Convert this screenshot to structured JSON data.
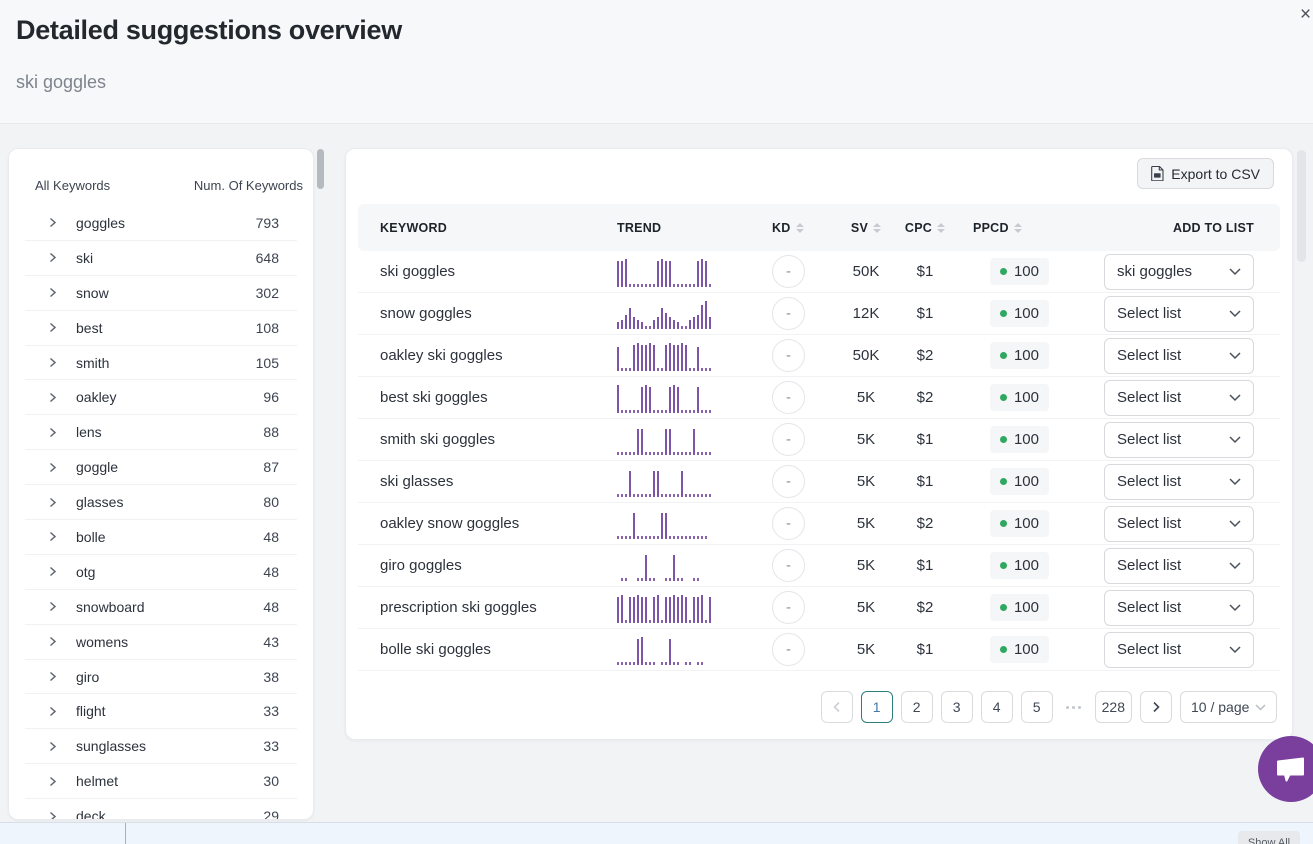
{
  "header": {
    "title": "Detailed suggestions overview",
    "subtitle": "ski goggles",
    "close": "×"
  },
  "sidebar": {
    "columns": {
      "left": "All Keywords",
      "right": "Num. Of Keywords"
    },
    "items": [
      {
        "label": "goggles",
        "count": "793"
      },
      {
        "label": "ski",
        "count": "648"
      },
      {
        "label": "snow",
        "count": "302"
      },
      {
        "label": "best",
        "count": "108"
      },
      {
        "label": "smith",
        "count": "105"
      },
      {
        "label": "oakley",
        "count": "96"
      },
      {
        "label": "lens",
        "count": "88"
      },
      {
        "label": "goggle",
        "count": "87"
      },
      {
        "label": "glasses",
        "count": "80"
      },
      {
        "label": "bolle",
        "count": "48"
      },
      {
        "label": "otg",
        "count": "48"
      },
      {
        "label": "snowboard",
        "count": "48"
      },
      {
        "label": "womens",
        "count": "43"
      },
      {
        "label": "giro",
        "count": "38"
      },
      {
        "label": "flight",
        "count": "33"
      },
      {
        "label": "sunglasses",
        "count": "33"
      },
      {
        "label": "helmet",
        "count": "30"
      },
      {
        "label": "deck",
        "count": "29"
      }
    ]
  },
  "table": {
    "export_button": "Export to CSV",
    "headers": {
      "keyword": "KEYWORD",
      "trend": "TREND",
      "kd": "KD",
      "sv": "SV",
      "cpc": "CPC",
      "ppcd": "PPCD",
      "add": "ADD TO LIST"
    },
    "rows": [
      {
        "keyword": "ski goggles",
        "kd": "-",
        "sv": "50K",
        "cpc": "$1",
        "ppcd": "100",
        "list": "ski goggles",
        "trend": [
          9,
          9,
          10,
          0,
          0,
          0,
          0,
          0,
          0,
          0,
          9,
          10,
          9,
          9,
          0,
          0,
          0,
          0,
          0,
          0,
          9,
          10,
          9,
          0
        ]
      },
      {
        "keyword": "snow goggles",
        "kd": "-",
        "sv": "12K",
        "cpc": "$1",
        "ppcd": "100",
        "list": "Select list",
        "trend": [
          1,
          2,
          4,
          7,
          3,
          2,
          1,
          0,
          0,
          2,
          3,
          7,
          5,
          3,
          2,
          1,
          0,
          0,
          2,
          3,
          4,
          8,
          10,
          3
        ]
      },
      {
        "keyword": "oakley ski goggles",
        "kd": "-",
        "sv": "50K",
        "cpc": "$2",
        "ppcd": "100",
        "list": "Select list",
        "trend": [
          8,
          0,
          0,
          0,
          9,
          10,
          9,
          9,
          10,
          9,
          0,
          0,
          9,
          10,
          9,
          9,
          10,
          9,
          0,
          0,
          8,
          0,
          0,
          0
        ]
      },
      {
        "keyword": "best ski goggles",
        "kd": "-",
        "sv": "5K",
        "cpc": "$2",
        "ppcd": "100",
        "list": "Select list",
        "trend": [
          10,
          0,
          0,
          0,
          0,
          0,
          9,
          10,
          9,
          0,
          0,
          0,
          0,
          9,
          10,
          9,
          0,
          0,
          0,
          0,
          9,
          0,
          0,
          0
        ]
      },
      {
        "keyword": "smith ski goggles",
        "kd": "-",
        "sv": "5K",
        "cpc": "$1",
        "ppcd": "100",
        "list": "Select list",
        "trend": [
          0,
          0,
          0,
          0,
          0,
          9,
          9,
          0,
          0,
          0,
          0,
          0,
          9,
          9,
          0,
          0,
          0,
          0,
          0,
          9,
          0,
          0,
          0,
          0
        ]
      },
      {
        "keyword": "ski glasses",
        "kd": "-",
        "sv": "5K",
        "cpc": "$1",
        "ppcd": "100",
        "list": "Select list",
        "trend": [
          0,
          0,
          0,
          9,
          0,
          0,
          0,
          0,
          0,
          9,
          9,
          0,
          0,
          0,
          0,
          0,
          9,
          0,
          0,
          0,
          0,
          0,
          0,
          0
        ]
      },
      {
        "keyword": "oakley snow goggles",
        "kd": "-",
        "sv": "5K",
        "cpc": "$2",
        "ppcd": "100",
        "list": "Select list",
        "trend": [
          0,
          0,
          0,
          0,
          9,
          0,
          0,
          0,
          0,
          0,
          0,
          9,
          9,
          0,
          0,
          0,
          0,
          0,
          0,
          0,
          0,
          0,
          0,
          -1
        ]
      },
      {
        "keyword": "giro goggles",
        "kd": "-",
        "sv": "5K",
        "cpc": "$1",
        "ppcd": "100",
        "list": "Select list",
        "trend": [
          -1,
          0,
          0,
          -1,
          -1,
          0,
          0,
          9,
          0,
          0,
          -1,
          -1,
          0,
          0,
          9,
          0,
          0,
          -1,
          -1,
          0,
          0,
          -1,
          -1,
          -1
        ]
      },
      {
        "keyword": "prescription ski goggles",
        "kd": "-",
        "sv": "5K",
        "cpc": "$2",
        "ppcd": "100",
        "list": "Select list",
        "trend": [
          9,
          10,
          0,
          9,
          9,
          10,
          9,
          9,
          0,
          9,
          10,
          0,
          9,
          9,
          10,
          9,
          10,
          9,
          0,
          9,
          9,
          10,
          0,
          9
        ]
      },
      {
        "keyword": "bolle ski goggles",
        "kd": "-",
        "sv": "5K",
        "cpc": "$1",
        "ppcd": "100",
        "list": "Select list",
        "trend": [
          0,
          0,
          0,
          0,
          0,
          9,
          10,
          0,
          0,
          0,
          -1,
          0,
          0,
          9,
          0,
          0,
          -1,
          0,
          0,
          -1,
          0,
          0,
          -1,
          -1
        ]
      }
    ]
  },
  "pagination": {
    "pages": [
      "1",
      "2",
      "3",
      "4",
      "5"
    ],
    "active_page": "1",
    "last_page": "228",
    "page_size": "10 / page"
  },
  "footer": {
    "show_all": "Show All"
  },
  "icons": {
    "export": "file-icon",
    "sort": "sort-carets-icon",
    "row_expand": "chevron-right-icon",
    "select": "chevron-down-icon",
    "prev": "chevron-left-icon",
    "next": "chevron-right-icon",
    "ellipsis": "more-pages-dots",
    "chat": "chat-bubble-icon",
    "close": "close-icon",
    "ppcd_status": "green-dot"
  },
  "colors": {
    "trend_purple": "#7d55a8",
    "chat_purple": "#7a3e9d",
    "green_dot": "#2fa860",
    "active_page_border": "#2b7f7c",
    "active_page_text": "#4478a8",
    "card_bg": "#ffffff",
    "page_bg": "#f2f3f5"
  }
}
